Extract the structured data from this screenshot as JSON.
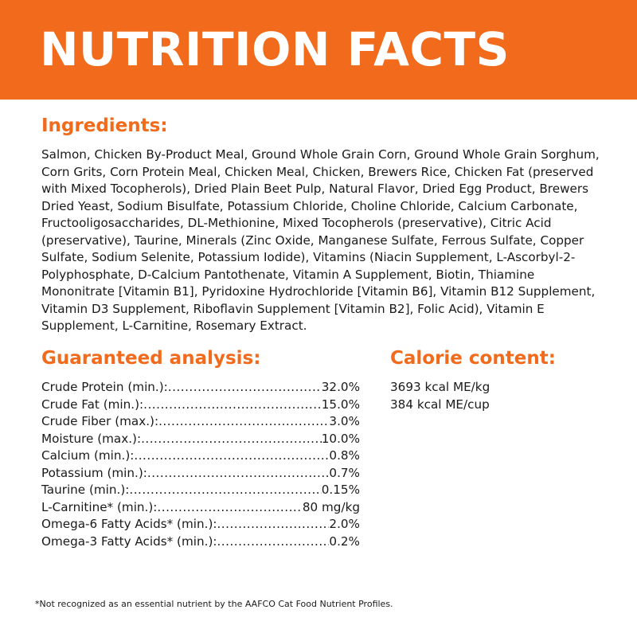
{
  "header": {
    "title": "NUTRITION FACTS"
  },
  "ingredients": {
    "heading": "Ingredients:",
    "text": "Salmon, Chicken By-Product Meal, Ground Whole Grain Corn, Ground Whole Grain Sorghum, Corn Grits, Corn Protein Meal, Chicken Meal, Chicken, Brewers Rice, Chicken Fat (preserved with Mixed Tocopherols), Dried Plain Beet Pulp, Natural Flavor, Dried Egg Product, Brewers Dried Yeast, Sodium Bisulfate, Potassium Chloride, Choline Chloride, Calcium Carbonate, Fructooligosaccharides, DL-Methionine, Mixed Tocopherols (preservative), Citric Acid (preservative), Taurine, Minerals (Zinc Oxide, Manganese Sulfate, Ferrous Sulfate, Copper Sulfate, Sodium Selenite, Potassium Iodide), Vitamins (Niacin Supplement, L-Ascorbyl-2-Polyphosphate, D-Calcium Pantothenate, Vitamin A Supplement, Biotin, Thiamine Mononitrate [Vitamin B1], Pyridoxine Hydrochloride [Vitamin B6], Vitamin B12 Supplement, Vitamin D3 Supplement, Riboflavin Supplement [Vitamin B2], Folic Acid), Vitamin E Supplement, L-Carnitine, Rosemary Extract."
  },
  "analysis": {
    "heading": "Guaranteed analysis:",
    "rows": [
      {
        "label": "Crude Protein (min.):",
        "value": "32.0%"
      },
      {
        "label": "Crude Fat (min.):",
        "value": "15.0%"
      },
      {
        "label": "Crude Fiber (max.):",
        "value": "3.0%"
      },
      {
        "label": "Moisture (max.):",
        "value": "10.0%"
      },
      {
        "label": "Calcium (min.):",
        "value": "0.8%"
      },
      {
        "label": "Potassium (min.):",
        "value": "0.7%"
      },
      {
        "label": "Taurine (min.):",
        "value": "0.15%"
      },
      {
        "label": "L-Carnitine* (min.):",
        "value": "80 mg/kg"
      },
      {
        "label": "Omega-6 Fatty Acids* (min.):",
        "value": "2.0%"
      },
      {
        "label": "Omega-3 Fatty Acids* (min.):",
        "value": "0.2%"
      }
    ]
  },
  "calorie": {
    "heading": "Calorie content:",
    "lines": [
      "3693 kcal ME/kg",
      "384 kcal ME/cup"
    ]
  },
  "footnote": "*Not recognized as an essential nutrient by the AAFCO Cat Food Nutrient Profiles."
}
